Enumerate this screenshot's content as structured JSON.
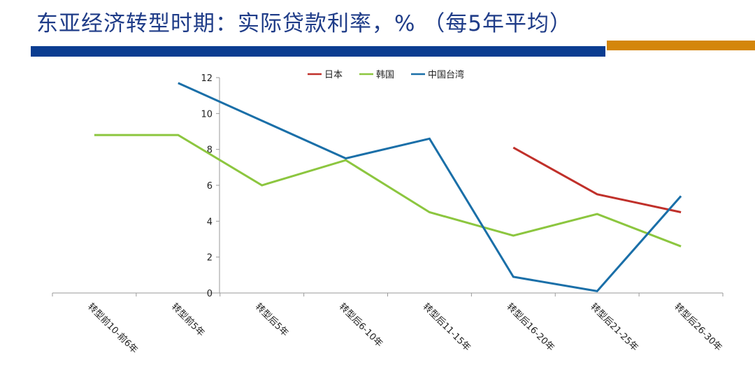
{
  "header": {
    "title": "东亚经济转型时期：实际贷款利率，%  （每5年平均）"
  },
  "colors": {
    "title": "#1f3c88",
    "bar_blue": "#0b3d91",
    "bar_orange": "#d4860b"
  },
  "chart_data": {
    "type": "line",
    "title": "",
    "xlabel": "",
    "ylabel": "",
    "ylim": [
      0,
      12
    ],
    "yticks": [
      "0",
      "2",
      "4",
      "6",
      "8",
      "10",
      "12"
    ],
    "categories": [
      "转型前10-前6年",
      "转型前5年",
      "转型后5年",
      "转型后6-10年",
      "转型后11-15年",
      "转型后16-20年",
      "转型后21-25年",
      "转型后26-30年"
    ],
    "series": [
      {
        "name": "日本",
        "color": "#c0302a",
        "values": [
          null,
          null,
          null,
          null,
          null,
          8.1,
          5.5,
          4.5
        ]
      },
      {
        "name": "韩国",
        "color": "#8cc63f",
        "values": [
          8.8,
          8.8,
          6.0,
          7.4,
          4.5,
          3.2,
          4.4,
          2.6
        ]
      },
      {
        "name": "中国台湾",
        "color": "#1a6fa8",
        "values": [
          null,
          11.7,
          9.6,
          7.5,
          8.6,
          0.9,
          0.1,
          5.4
        ]
      }
    ],
    "legend_position": "top",
    "grid": false
  }
}
